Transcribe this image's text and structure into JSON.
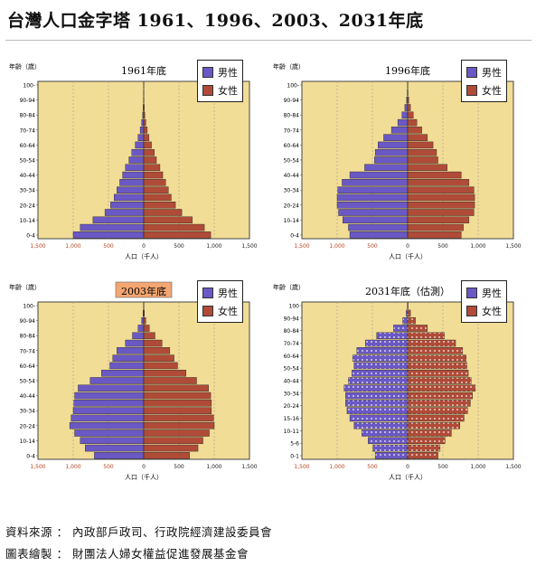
{
  "page_title": "台灣人口金字塔 1961、1996、2003、2031年底",
  "colors": {
    "male": "#6a58c4",
    "female": "#b04b38",
    "plot_bg": "#f2dd96",
    "grid": "#9a9a9a",
    "highlight_title_bg": "#f4a672"
  },
  "legend": {
    "male": "男性",
    "female": "女性"
  },
  "axis": {
    "y_label": "年齡（歲）",
    "x_label": "人口（千人）"
  },
  "footer": {
    "source": "資料來源 ： 內政部戶政司、行政院經濟建設委員會",
    "credit": "圖表繪製 ： 財團法人婦女權益促進發展基金會"
  },
  "chart_data": [
    {
      "type": "bar",
      "title": "1961年底",
      "title_highlight": false,
      "hatched": false,
      "age_groups": [
        "0-4",
        "5-9",
        "10-14",
        "15-19",
        "20-24",
        "25-29",
        "30-34",
        "35-39",
        "40-44",
        "45-49",
        "50-54",
        "55-59",
        "60-64",
        "65-69",
        "70-74",
        "75-79",
        "80-84",
        "85-89",
        "90-94",
        "95-99",
        "100+"
      ],
      "age_tick_labels": [
        "0-4",
        "10-14",
        "20-24",
        "30-34",
        "40-44",
        "50-54",
        "60-64",
        "70-74",
        "80-84",
        "90-94",
        "100-"
      ],
      "xlim": [
        -1500,
        1500
      ],
      "x_tick_labels": [
        "1,500",
        "1,000",
        "500",
        "0",
        "500",
        "1,000",
        "1,500"
      ],
      "series": [
        {
          "name": "男性",
          "values": [
            -1000,
            -900,
            -720,
            -550,
            -470,
            -420,
            -380,
            -340,
            -300,
            -260,
            -210,
            -170,
            -120,
            -80,
            -50,
            -30,
            -15,
            -8,
            -3,
            -1,
            -0.5
          ]
        },
        {
          "name": "女性",
          "values": [
            950,
            860,
            690,
            540,
            450,
            390,
            350,
            310,
            270,
            230,
            180,
            150,
            110,
            75,
            50,
            30,
            15,
            8,
            3,
            1,
            0.5
          ]
        }
      ]
    },
    {
      "type": "bar",
      "title": "1996年底",
      "title_highlight": false,
      "hatched": false,
      "age_groups": [
        "0-4",
        "5-9",
        "10-14",
        "15-19",
        "20-24",
        "25-29",
        "30-34",
        "35-39",
        "40-44",
        "45-49",
        "50-54",
        "55-59",
        "60-64",
        "65-69",
        "70-74",
        "75-79",
        "80-84",
        "85-89",
        "90-94",
        "95-99",
        "100+"
      ],
      "age_tick_labels": [
        "0-4",
        "10-14",
        "20-24",
        "30-34",
        "40-44",
        "50-54",
        "60-64",
        "70-74",
        "80-84",
        "90-94",
        "100-"
      ],
      "xlim": [
        -1500,
        1500
      ],
      "x_tick_labels": [
        "1,500",
        "1,000",
        "500",
        "0",
        "500",
        "1,000",
        "1,500"
      ],
      "series": [
        {
          "name": "男性",
          "values": [
            -820,
            -840,
            -920,
            -980,
            -1000,
            -1000,
            -990,
            -930,
            -820,
            -610,
            -470,
            -460,
            -420,
            -340,
            -230,
            -140,
            -80,
            -40,
            -15,
            -5,
            -1
          ]
        },
        {
          "name": "女性",
          "values": [
            760,
            790,
            870,
            940,
            950,
            950,
            940,
            870,
            760,
            560,
            430,
            410,
            360,
            280,
            200,
            130,
            80,
            40,
            15,
            5,
            1
          ]
        }
      ]
    },
    {
      "type": "bar",
      "title": "2003年底",
      "title_highlight": true,
      "hatched": false,
      "age_groups": [
        "0-4",
        "5-9",
        "10-14",
        "15-19",
        "20-24",
        "25-29",
        "30-34",
        "35-39",
        "40-44",
        "45-49",
        "50-54",
        "55-59",
        "60-64",
        "65-69",
        "70-74",
        "75-79",
        "80-84",
        "85-89",
        "90-94",
        "95-99",
        "100+"
      ],
      "age_tick_labels": [
        "0-4",
        "10-14",
        "20-24",
        "30-34",
        "40-44",
        "50-54",
        "60-64",
        "70-74",
        "80-84",
        "90-94",
        "100-"
      ],
      "xlim": [
        -1500,
        1500
      ],
      "x_tick_labels": [
        "1,500",
        "1,000",
        "500",
        "0",
        "500",
        "1,000",
        "1,500"
      ],
      "series": [
        {
          "name": "男性",
          "values": [
            -700,
            -830,
            -900,
            -980,
            -1050,
            -1030,
            -1000,
            -990,
            -980,
            -930,
            -760,
            -600,
            -480,
            -440,
            -380,
            -260,
            -160,
            -80,
            -30,
            -10,
            -2
          ]
        },
        {
          "name": "女性",
          "values": [
            650,
            770,
            840,
            930,
            1000,
            990,
            960,
            960,
            950,
            920,
            750,
            600,
            480,
            430,
            370,
            260,
            160,
            80,
            30,
            10,
            2
          ]
        }
      ]
    },
    {
      "type": "bar",
      "title": "2031年底（估測）",
      "title_highlight": false,
      "hatched": true,
      "age_groups": [
        "0-4",
        "5-9",
        "10-14",
        "15-19",
        "20-24",
        "25-29",
        "30-34",
        "35-39",
        "40-44",
        "45-49",
        "50-54",
        "55-59",
        "60-64",
        "65-69",
        "70-74",
        "75-79",
        "80-84",
        "85-89",
        "90-94",
        "95-99",
        "100+"
      ],
      "age_tick_labels": [
        "0-1",
        "5-6",
        "10-11",
        "15-16",
        "20-24",
        "30-34",
        "40-44",
        "50-54",
        "60-64",
        "70-74",
        "80-84",
        "90-94",
        "100"
      ],
      "xlim": [
        -1500,
        1500
      ],
      "x_tick_labels": [
        "1,500",
        "1,000",
        "500",
        "0",
        "500",
        "1,000",
        "1,500"
      ],
      "series": [
        {
          "name": "男性",
          "values": [
            -460,
            -490,
            -560,
            -650,
            -760,
            -820,
            -860,
            -880,
            -880,
            -900,
            -840,
            -790,
            -760,
            -780,
            -720,
            -600,
            -440,
            -200,
            -70,
            -20,
            -3
          ]
        },
        {
          "name": "女性",
          "values": [
            430,
            460,
            530,
            620,
            740,
            800,
            850,
            890,
            920,
            960,
            900,
            860,
            840,
            830,
            780,
            680,
            520,
            280,
            110,
            40,
            6
          ]
        }
      ]
    }
  ]
}
